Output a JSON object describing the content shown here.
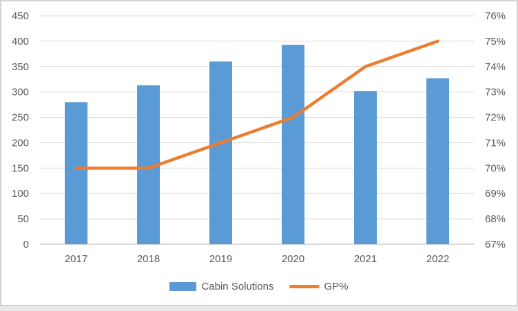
{
  "chart_data": {
    "type": "combo",
    "title": "",
    "categories": [
      "2017",
      "2018",
      "2019",
      "2020",
      "2021",
      "2022"
    ],
    "series": [
      {
        "name": "Cabin Solutions",
        "chart_type": "bar",
        "axis": "left",
        "values": [
          280,
          313,
          360,
          393,
          302,
          327
        ]
      },
      {
        "name": "GP%",
        "chart_type": "line",
        "axis": "right",
        "unit": "%",
        "values": [
          70,
          70,
          71,
          72,
          74,
          75
        ]
      }
    ],
    "left_axis": {
      "min": 0,
      "max": 450,
      "step": 50,
      "tick_labels": [
        "0",
        "50",
        "100",
        "150",
        "200",
        "250",
        "300",
        "350",
        "400",
        "450"
      ]
    },
    "right_axis": {
      "min": 67,
      "max": 76,
      "step": 1,
      "tick_labels": [
        "67%",
        "68%",
        "69%",
        "70%",
        "71%",
        "72%",
        "73%",
        "74%",
        "75%",
        "76%"
      ]
    },
    "grid": true,
    "legend_position": "bottom",
    "legend": [
      {
        "label": "Cabin Solutions",
        "swatch": "bar"
      },
      {
        "label": "GP%",
        "swatch": "line"
      }
    ]
  },
  "colors": {
    "bar": "#5B9BD5",
    "line": "#ED7D31",
    "gridline": "#D9D9D9",
    "axis_line": "#D9D9D9",
    "tick_text": "#595959",
    "frame_border": "#D2D2D2",
    "background": "#FFFFFF",
    "page_background": "#E9E9E9"
  }
}
